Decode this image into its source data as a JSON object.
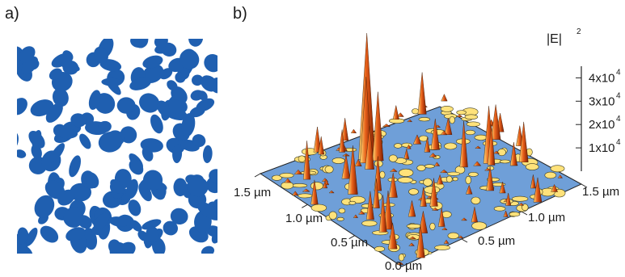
{
  "panels": {
    "a": {
      "label": "a)"
    },
    "b": {
      "label": "b)"
    }
  },
  "colors": {
    "texture_blue": "#1f5fb0",
    "plane_blue": "#6f9fd8",
    "peak_dark": "#7a1a00",
    "peak_mid": "#e8601a",
    "peak_light": "#ffe27a"
  },
  "chart_data": {
    "type": "surface",
    "z_label": "|E|",
    "z_label_exponent": "2",
    "z_ticks": [
      {
        "value": 10000,
        "label": "1x10",
        "exp": "4"
      },
      {
        "value": 20000,
        "label": "2x10",
        "exp": "4"
      },
      {
        "value": 30000,
        "label": "3x10",
        "exp": "4"
      },
      {
        "value": 40000,
        "label": "4x10",
        "exp": "4"
      }
    ],
    "x_ticks": [
      "0.0 µm",
      "0.5 µm",
      "1.0 µm",
      "1.5 µm"
    ],
    "y_ticks": [
      "0.5 µm",
      "1.0 µm",
      "1.5 µm"
    ],
    "x_range": [
      0,
      1.5
    ],
    "y_range": [
      0,
      1.5
    ],
    "z_range": [
      0,
      45000
    ]
  }
}
